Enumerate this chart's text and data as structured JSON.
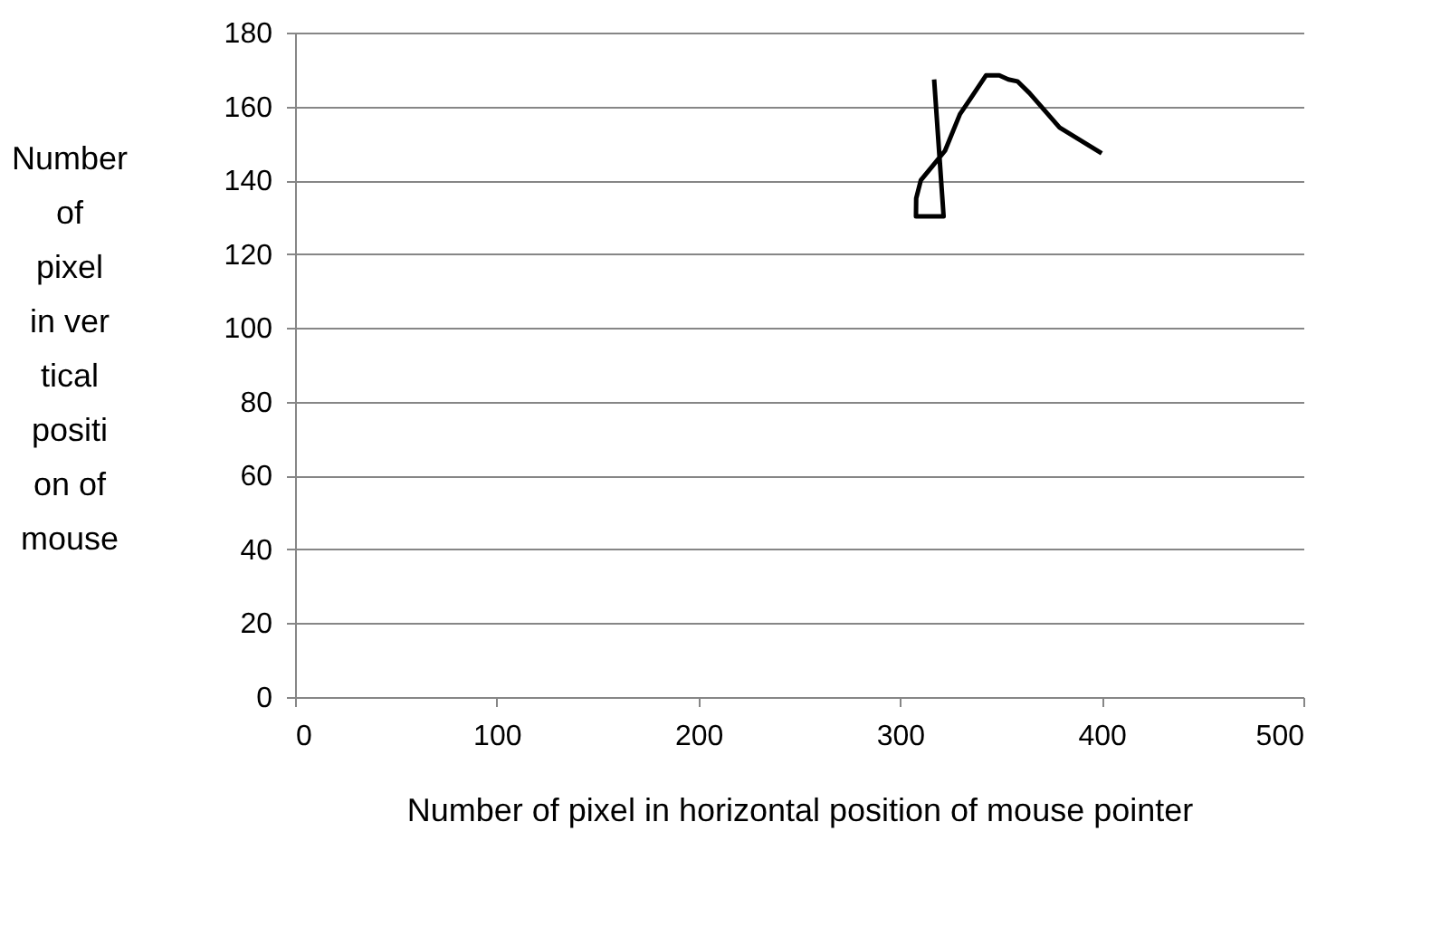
{
  "chart_data": {
    "type": "line",
    "xlabel": "Number of pixel in horizontal position of mouse pointer",
    "ylabel": "Number of pixel in vertical position of mouse",
    "x": [
      316.9,
      321.6,
      307.9,
      308,
      310.3,
      316.3,
      322.3,
      329.7,
      334.8,
      342.6,
      349.2,
      353.7,
      358.2,
      364.2,
      379.1,
      400
    ],
    "series": [
      {
        "color": "#000000",
        "values": [
          167.3,
          130.2,
          130.2,
          135.1,
          140,
          144,
          148,
          157.9,
          162,
          168.4,
          168.4,
          167.3,
          166.8,
          163.6,
          154.3,
          147.3
        ]
      }
    ],
    "xlim": [
      0,
      500
    ],
    "xticks": [
      0,
      100,
      200,
      300,
      400,
      500
    ],
    "ylim": [
      0,
      180
    ],
    "yticks": [
      0,
      20,
      40,
      60,
      80,
      100,
      120,
      140,
      160,
      180
    ],
    "grid": "y",
    "marker": "none",
    "line_style": "solid"
  }
}
